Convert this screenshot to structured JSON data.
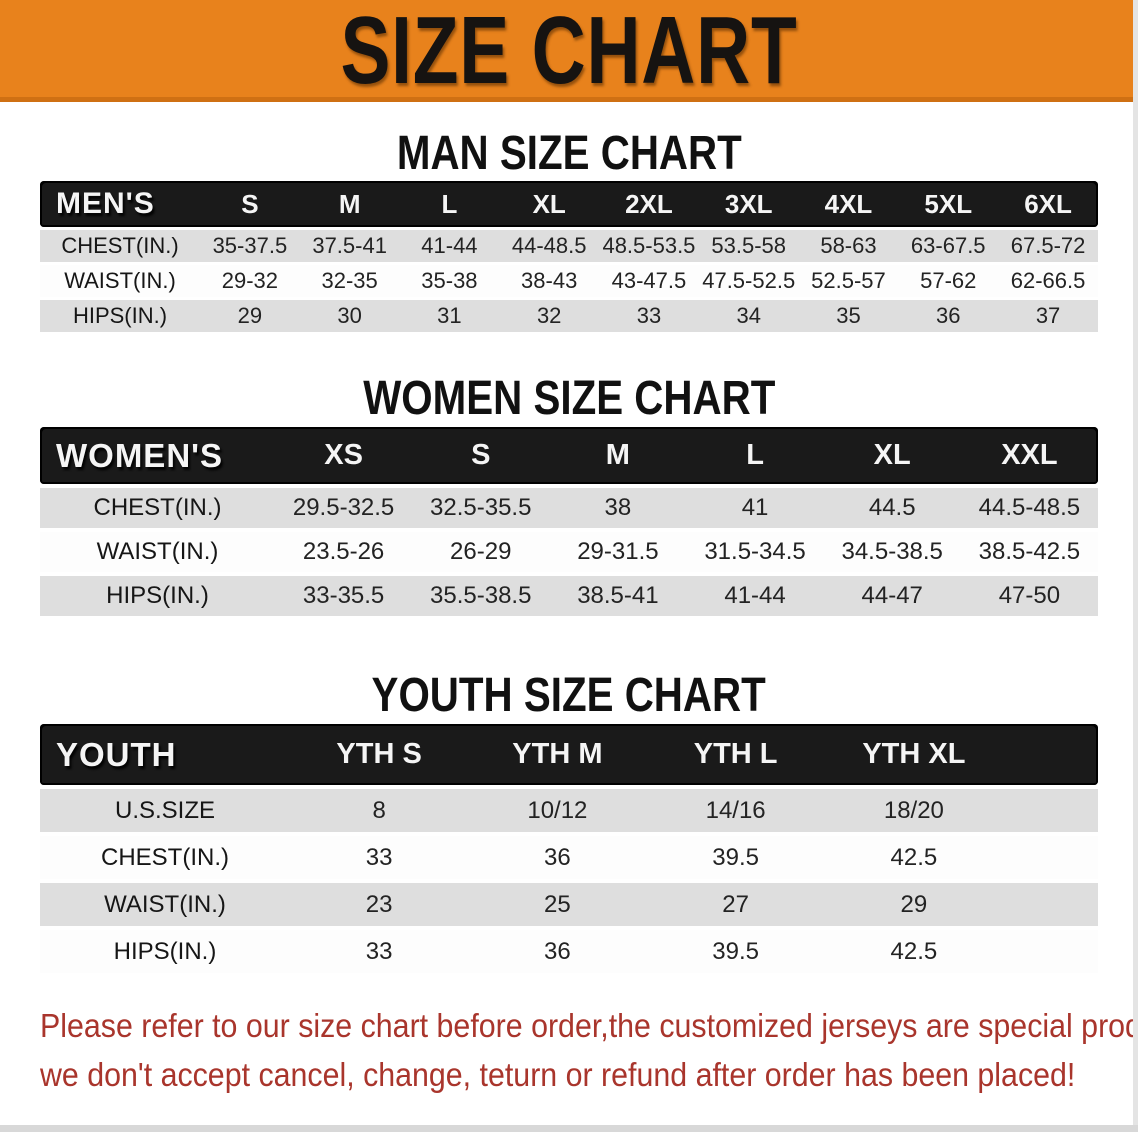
{
  "banner": {
    "title": "SIZE CHART",
    "bg_color": "#e8821c",
    "text_color": "#161311"
  },
  "sections": {
    "men": {
      "title": "MAN SIZE CHART",
      "group_label": "MEN'S",
      "columns": [
        "S",
        "M",
        "L",
        "XL",
        "2XL",
        "3XL",
        "4XL",
        "5XL",
        "6XL"
      ],
      "rows": [
        {
          "label": "CHEST(IN.)",
          "values": [
            "35-37.5",
            "37.5-41",
            "41-44",
            "44-48.5",
            "48.5-53.5",
            "53.5-58",
            "58-63",
            "63-67.5",
            "67.5-72"
          ]
        },
        {
          "label": "WAIST(IN.)",
          "values": [
            "29-32",
            "32-35",
            "35-38",
            "38-43",
            "43-47.5",
            "47.5-52.5",
            "52.5-57",
            "57-62",
            "62-66.5"
          ]
        },
        {
          "label": "HIPS(IN.)",
          "values": [
            "29",
            "30",
            "31",
            "32",
            "33",
            "34",
            "35",
            "36",
            "37"
          ]
        }
      ]
    },
    "women": {
      "title": "WOMEN SIZE CHART",
      "group_label": "WOMEN'S",
      "columns": [
        "XS",
        "S",
        "M",
        "L",
        "XL",
        "XXL"
      ],
      "rows": [
        {
          "label": "CHEST(IN.)",
          "values": [
            "29.5-32.5",
            "32.5-35.5",
            "38",
            "41",
            "44.5",
            "44.5-48.5"
          ]
        },
        {
          "label": "WAIST(IN.)",
          "values": [
            "23.5-26",
            "26-29",
            "29-31.5",
            "31.5-34.5",
            "34.5-38.5",
            "38.5-42.5"
          ]
        },
        {
          "label": "HIPS(IN.)",
          "values": [
            "33-35.5",
            "35.5-38.5",
            "38.5-41",
            "41-44",
            "44-47",
            "47-50"
          ]
        }
      ]
    },
    "youth": {
      "title": "YOUTH SIZE CHART",
      "group_label": "YOUTH",
      "columns": [
        "YTH S",
        "YTH M",
        "YTH L",
        "YTH XL"
      ],
      "rows": [
        {
          "label": "U.S.SIZE",
          "values": [
            "8",
            "10/12",
            "14/16",
            "18/20"
          ]
        },
        {
          "label": "CHEST(IN.)",
          "values": [
            "33",
            "36",
            "39.5",
            "42.5"
          ]
        },
        {
          "label": "WAIST(IN.)",
          "values": [
            "23",
            "25",
            "27",
            "29"
          ]
        },
        {
          "label": "HIPS(IN.)",
          "values": [
            "33",
            "36",
            "39.5",
            "42.5"
          ]
        }
      ]
    }
  },
  "footer": {
    "lines": [
      "Please refer to our size chart before order,the customized jerseys are special products,",
      "we don't accept cancel, change, teturn or refund after order has been placed!"
    ],
    "text_color": "#a9352c"
  },
  "colors": {
    "banner_orange": "#e8821c",
    "header_black": "#1a1a1a",
    "row_shade_gray": "#dedede",
    "note_red": "#a9352c"
  }
}
